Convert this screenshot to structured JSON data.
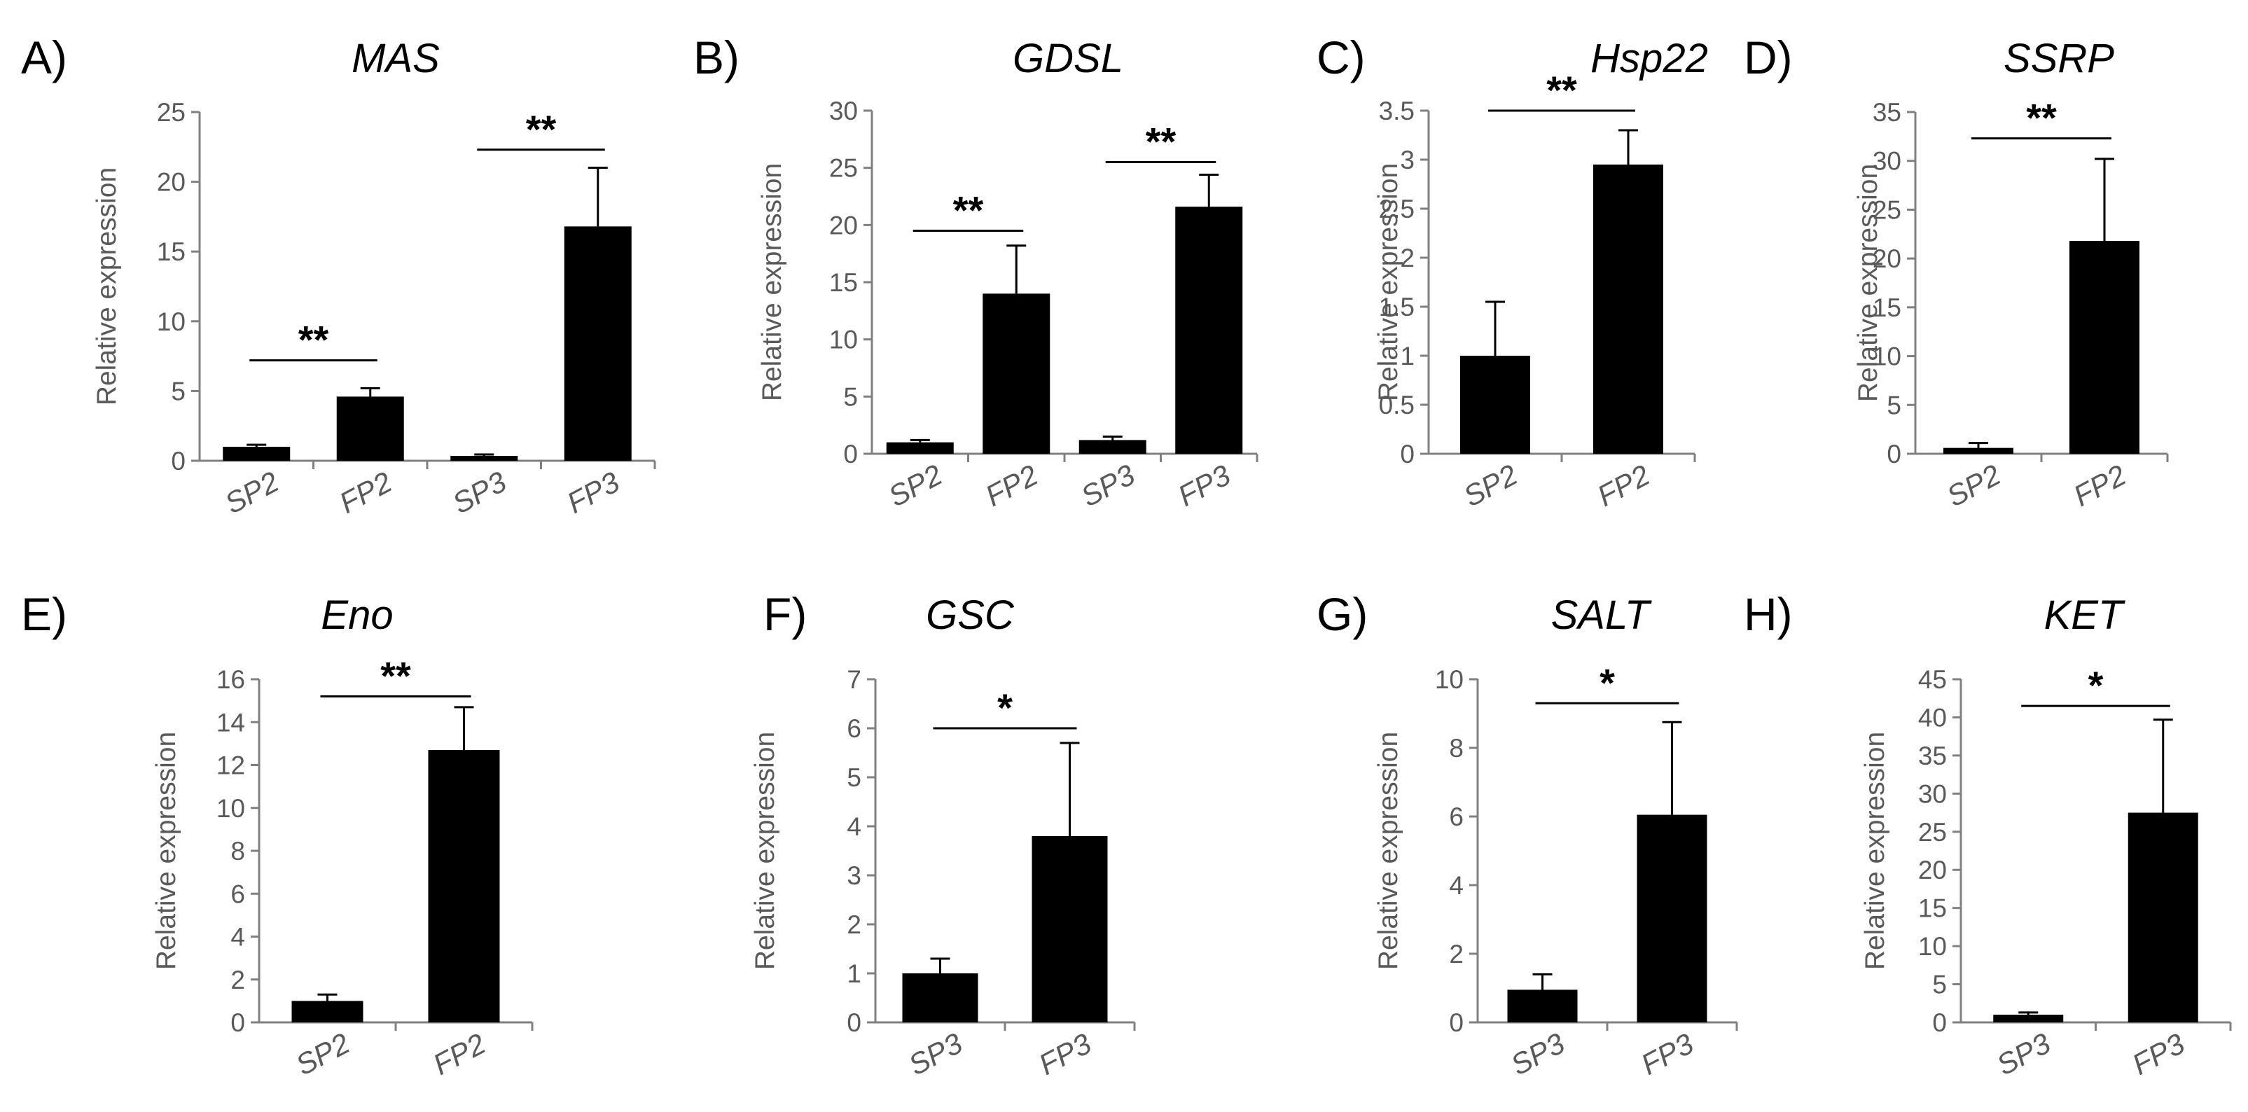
{
  "chart_data": [
    {
      "panel": "A)",
      "title": "MAS",
      "type": "bar",
      "ylabel": "Relative  expression",
      "ylim": [
        0,
        25
      ],
      "ystep": 5,
      "yticks": [
        "0",
        "5",
        "10",
        "15",
        "20",
        "25"
      ],
      "categories": [
        "SP2",
        "FP2",
        "SP3",
        "FP3"
      ],
      "values": [
        1.0,
        4.6,
        0.35,
        16.8
      ],
      "errors": [
        0.15,
        0.6,
        0.1,
        4.2
      ],
      "significance": [
        {
          "from": 0,
          "to": 1,
          "y": 7.2,
          "label": "**"
        },
        {
          "from": 2,
          "to": 3,
          "y": 22.3,
          "label": "**"
        }
      ]
    },
    {
      "panel": "B)",
      "title": "GDSL",
      "type": "bar",
      "ylabel": "Relative  expression",
      "ylim": [
        0,
        30
      ],
      "ystep": 5,
      "yticks": [
        "0",
        "5",
        "10",
        "15",
        "20",
        "25",
        "30"
      ],
      "categories": [
        "SP2",
        "FP2",
        "SP3",
        "FP3"
      ],
      "values": [
        1.0,
        14.0,
        1.2,
        21.6
      ],
      "errors": [
        0.2,
        4.2,
        0.3,
        2.8
      ],
      "significance": [
        {
          "from": 0,
          "to": 1,
          "y": 19.5,
          "label": "**"
        },
        {
          "from": 2,
          "to": 3,
          "y": 25.5,
          "label": "**"
        }
      ]
    },
    {
      "panel": "C)",
      "title": "Hsp22",
      "type": "bar",
      "ylabel": "Relative  expression",
      "ylim": [
        0,
        3.5
      ],
      "ystep": 0.5,
      "yticks": [
        "0",
        "0.5",
        "1",
        "1.5",
        "2",
        "2.5",
        "3",
        "3.5"
      ],
      "categories": [
        "SP2",
        "FP2"
      ],
      "values": [
        1.0,
        2.95
      ],
      "errors": [
        0.55,
        0.35
      ],
      "significance": [
        {
          "from": 0,
          "to": 1,
          "y": 3.5,
          "label": "**"
        }
      ]
    },
    {
      "panel": "D)",
      "title": "SSRP",
      "type": "bar",
      "ylabel": "Relative  expression",
      "ylim": [
        0,
        35
      ],
      "ystep": 5,
      "yticks": [
        "0",
        "5",
        "10",
        "15",
        "20",
        "25",
        "30",
        "35"
      ],
      "categories": [
        "SP2",
        "FP2"
      ],
      "values": [
        0.6,
        21.8
      ],
      "errors": [
        0.5,
        8.4
      ],
      "significance": [
        {
          "from": 0,
          "to": 1,
          "y": 32.3,
          "label": "**"
        }
      ]
    },
    {
      "panel": "E)",
      "title": "Eno",
      "type": "bar",
      "ylabel": "Relative  expression",
      "ylim": [
        0,
        16
      ],
      "ystep": 2,
      "yticks": [
        "0",
        "2",
        "4",
        "6",
        "8",
        "10",
        "12",
        "14",
        "16"
      ],
      "categories": [
        "SP2",
        "FP2"
      ],
      "values": [
        1.0,
        12.7
      ],
      "errors": [
        0.3,
        2.0
      ],
      "significance": [
        {
          "from": 0,
          "to": 1,
          "y": 15.2,
          "label": "**"
        }
      ]
    },
    {
      "panel": "F)",
      "title": "GSC",
      "type": "bar",
      "ylabel": "Relative expression",
      "ylim": [
        0,
        7
      ],
      "ystep": 1,
      "yticks": [
        "0",
        "1",
        "2",
        "3",
        "4",
        "5",
        "6",
        "7"
      ],
      "categories": [
        "SP3",
        "FP3"
      ],
      "values": [
        1.0,
        3.8
      ],
      "errors": [
        0.3,
        1.9
      ],
      "significance": [
        {
          "from": 0,
          "to": 1,
          "y": 6.0,
          "label": "*"
        }
      ]
    },
    {
      "panel": "G)",
      "title": "SALT",
      "type": "bar",
      "ylabel": "Relative  expression",
      "ylim": [
        0,
        10
      ],
      "ystep": 2,
      "yticks": [
        "0",
        "2",
        "4",
        "6",
        "8",
        "10"
      ],
      "categories": [
        "SP3",
        "FP3"
      ],
      "values": [
        0.95,
        6.05
      ],
      "errors": [
        0.45,
        2.7
      ],
      "significance": [
        {
          "from": 0,
          "to": 1,
          "y": 9.3,
          "label": "*"
        }
      ]
    },
    {
      "panel": "H)",
      "title": "KET",
      "type": "bar",
      "ylabel": "Relative expression",
      "ylim": [
        0,
        45
      ],
      "ystep": 5,
      "yticks": [
        "0",
        "5",
        "10",
        "15",
        "20",
        "25",
        "30",
        "35",
        "40",
        "45"
      ],
      "categories": [
        "SP3",
        "FP3"
      ],
      "values": [
        1.0,
        27.5
      ],
      "errors": [
        0.3,
        12.2
      ],
      "significance": [
        {
          "from": 0,
          "to": 1,
          "y": 41.5,
          "label": "*"
        }
      ]
    }
  ]
}
